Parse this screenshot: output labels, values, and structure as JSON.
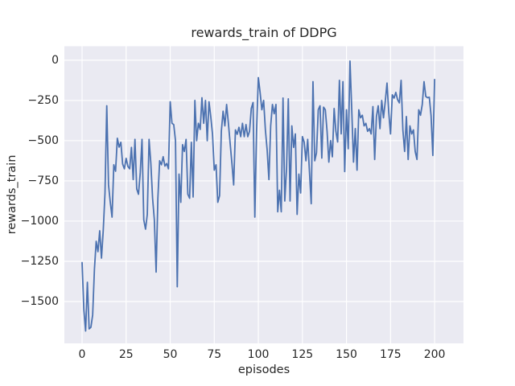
{
  "figure": {
    "title": "rewards_train of DDPG",
    "xlabel": "episodes",
    "ylabel": "rewards_train"
  },
  "chart_data": {
    "type": "line",
    "title": "rewards_train of DDPG",
    "xlabel": "episodes",
    "ylabel": "rewards_train",
    "legend": false,
    "grid": true,
    "style": "seaborn-darkgrid",
    "background_color": "#eaeaf2",
    "grid_color": "#ffffff",
    "text_color": "#262626",
    "line_color": "#4c72b0",
    "xlim": [
      -10.05,
      216.4
    ],
    "ylim": [
      -1760,
      87
    ],
    "x_ticks": [
      0,
      25,
      50,
      75,
      100,
      125,
      150,
      175,
      200
    ],
    "x_tick_labels": [
      "0",
      "25",
      "50",
      "75",
      "100",
      "125",
      "150",
      "175",
      "200"
    ],
    "y_ticks": [
      0,
      -250,
      -500,
      -750,
      -1000,
      -1250,
      -1500
    ],
    "y_tick_labels": [
      "0",
      "−250",
      "−500",
      "−750",
      "−1000",
      "−1250",
      "−1500"
    ],
    "x_start": 0,
    "x_step": 1,
    "series": [
      {
        "name": "rewards_train",
        "color": "#4c72b0",
        "values": [
          -1258,
          -1550,
          -1683,
          -1380,
          -1670,
          -1660,
          -1583,
          -1300,
          -1125,
          -1190,
          -1060,
          -1230,
          -1058,
          -825,
          -283,
          -775,
          -883,
          -975,
          -650,
          -690,
          -485,
          -540,
          -510,
          -645,
          -675,
          -610,
          -660,
          -675,
          -542,
          -742,
          -492,
          -800,
          -833,
          -700,
          -492,
          -992,
          -1050,
          -958,
          -492,
          -640,
          -858,
          -992,
          -1317,
          -858,
          -625,
          -650,
          -600,
          -658,
          -642,
          -675,
          -258,
          -392,
          -400,
          -500,
          -1408,
          -708,
          -883,
          -525,
          -567,
          -492,
          -833,
          -858,
          -510,
          -850,
          -250,
          -500,
          -392,
          -430,
          -233,
          -392,
          -250,
          -500,
          -258,
          -350,
          -460,
          -683,
          -650,
          -883,
          -842,
          -442,
          -317,
          -408,
          -275,
          -390,
          -517,
          -640,
          -775,
          -433,
          -460,
          -417,
          -475,
          -392,
          -475,
          -400,
          -475,
          -442,
          -300,
          -263,
          -975,
          -440,
          -108,
          -200,
          -308,
          -250,
          -433,
          -558,
          -742,
          -408,
          -275,
          -333,
          -275,
          -942,
          -808,
          -942,
          -235,
          -875,
          -675,
          -240,
          -875,
          -408,
          -542,
          -458,
          -958,
          -708,
          -825,
          -475,
          -508,
          -625,
          -492,
          -692,
          -892,
          -133,
          -625,
          -575,
          -308,
          -283,
          -608,
          -292,
          -308,
          -442,
          -633,
          -500,
          -600,
          -300,
          -442,
          -508,
          -125,
          -458,
          -133,
          -692,
          -308,
          -550,
          -5,
          -308,
          -633,
          -425,
          -683,
          -308,
          -358,
          -342,
          -408,
          -392,
          -442,
          -425,
          -458,
          -288,
          -617,
          -350,
          -283,
          -425,
          -250,
          -358,
          -258,
          -142,
          -325,
          -458,
          -215,
          -235,
          -200,
          -245,
          -265,
          -125,
          -433,
          -567,
          -350,
          -617,
          -408,
          -458,
          -433,
          -567,
          -617,
          -308,
          -342,
          -275,
          -133,
          -225,
          -233,
          -230,
          -345,
          -592,
          -120
        ]
      }
    ]
  }
}
